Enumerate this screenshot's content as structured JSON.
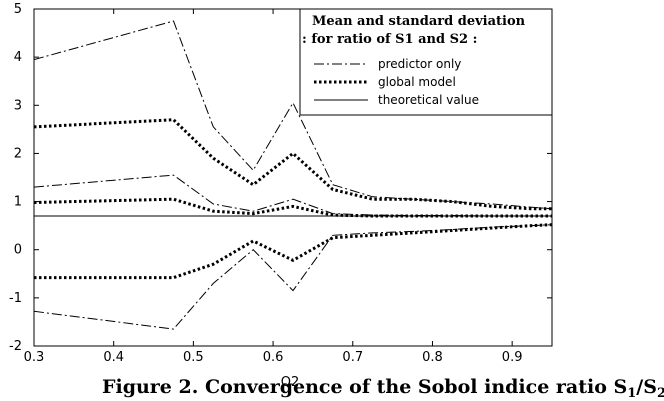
{
  "chart_data": {
    "type": "line",
    "title": "",
    "xlabel": "Q2",
    "ylabel": "",
    "xlim": [
      0.3,
      0.95
    ],
    "ylim": [
      -2,
      5
    ],
    "grid": false,
    "xticks": [
      0.3,
      0.4,
      0.5,
      0.6,
      0.7,
      0.8,
      0.9
    ],
    "yticks": [
      -2,
      -1,
      0,
      1,
      2,
      3,
      4,
      5
    ],
    "legend": {
      "placement": "top-right",
      "title_line1": "Mean and standard deviation",
      "title_line2": ": for ratio of S1 and S2 :",
      "entries": [
        {
          "label": "predictor only",
          "style": "dashdot"
        },
        {
          "label": "global model",
          "style": "dotted"
        },
        {
          "label": "theoretical value",
          "style": "solid"
        }
      ]
    },
    "series": [
      {
        "group": "predictor only",
        "style": "dashdot",
        "role": "upper",
        "x": [
          0.3,
          0.475,
          0.525,
          0.575,
          0.625,
          0.675,
          0.725,
          0.775,
          0.825,
          0.875,
          0.925,
          0.95
        ],
        "y": [
          3.95,
          4.75,
          2.55,
          1.65,
          3.05,
          1.35,
          1.1,
          1.05,
          1.0,
          0.95,
          0.88,
          0.85
        ]
      },
      {
        "group": "global model",
        "style": "dotted",
        "role": "upper",
        "x": [
          0.3,
          0.475,
          0.525,
          0.575,
          0.625,
          0.675,
          0.725,
          0.775,
          0.825,
          0.875,
          0.925,
          0.95
        ],
        "y": [
          2.55,
          2.7,
          1.9,
          1.35,
          2.0,
          1.25,
          1.05,
          1.05,
          1.0,
          0.9,
          0.85,
          0.85
        ]
      },
      {
        "group": "predictor only",
        "style": "dashdot",
        "role": "mean",
        "x": [
          0.3,
          0.475,
          0.525,
          0.575,
          0.625,
          0.675,
          0.725,
          0.775,
          0.825,
          0.875,
          0.925,
          0.95
        ],
        "y": [
          1.3,
          1.55,
          0.95,
          0.8,
          1.05,
          0.75,
          0.72,
          0.71,
          0.71,
          0.7,
          0.7,
          0.7
        ]
      },
      {
        "group": "global model",
        "style": "dotted",
        "role": "mean",
        "x": [
          0.3,
          0.475,
          0.525,
          0.575,
          0.625,
          0.675,
          0.725,
          0.775,
          0.825,
          0.875,
          0.925,
          0.95
        ],
        "y": [
          0.98,
          1.05,
          0.8,
          0.75,
          0.9,
          0.72,
          0.7,
          0.7,
          0.7,
          0.7,
          0.7,
          0.7
        ]
      },
      {
        "group": "theoretical value",
        "style": "solid",
        "role": "theory",
        "x": [
          0.3,
          0.95
        ],
        "y": [
          0.7,
          0.7
        ]
      },
      {
        "group": "global model",
        "style": "dotted",
        "role": "lower",
        "x": [
          0.3,
          0.475,
          0.525,
          0.575,
          0.625,
          0.675,
          0.725,
          0.775,
          0.825,
          0.875,
          0.925,
          0.95
        ],
        "y": [
          -0.58,
          -0.58,
          -0.3,
          0.18,
          -0.22,
          0.25,
          0.3,
          0.35,
          0.4,
          0.45,
          0.5,
          0.52
        ]
      },
      {
        "group": "predictor only",
        "style": "dashdot",
        "role": "lower",
        "x": [
          0.3,
          0.475,
          0.525,
          0.575,
          0.625,
          0.675,
          0.725,
          0.775,
          0.825,
          0.875,
          0.925,
          0.95
        ],
        "y": [
          -1.28,
          -1.65,
          -0.7,
          0.0,
          -0.85,
          0.3,
          0.35,
          0.38,
          0.42,
          0.47,
          0.5,
          0.52
        ]
      }
    ]
  },
  "caption": {
    "prefix": "Figure 2. Convergence of the Sobol indice ratio S",
    "sub1": "1",
    "slash": "/S",
    "sub2": "2"
  }
}
